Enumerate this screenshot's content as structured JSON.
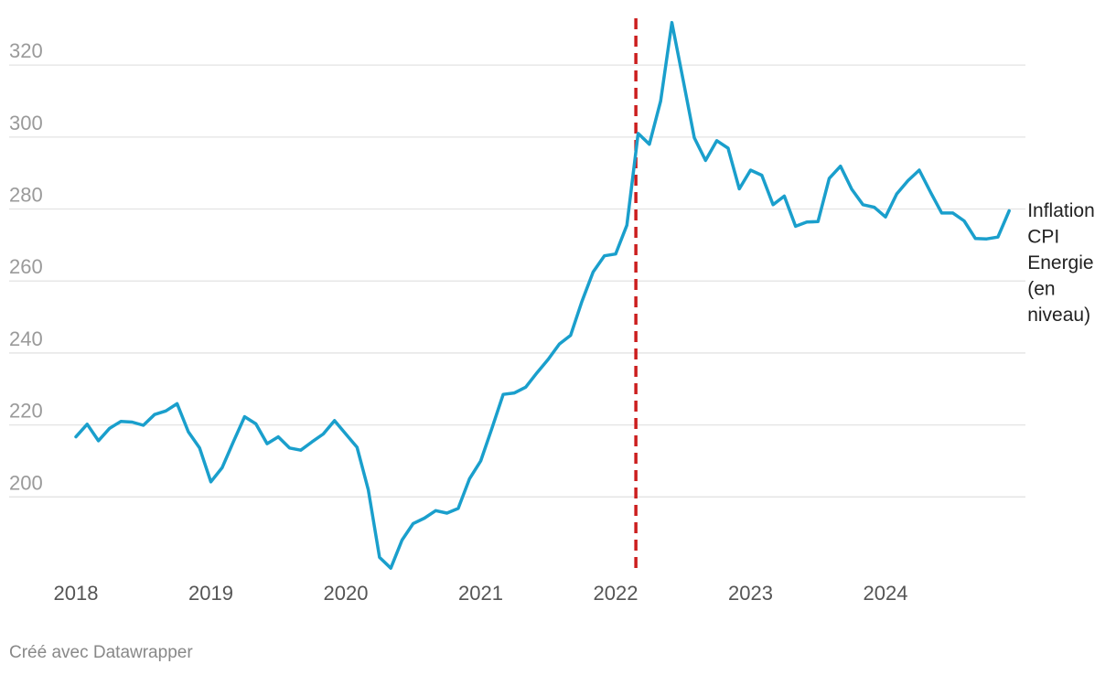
{
  "chart_data": {
    "type": "line",
    "title": "",
    "xlabel": "",
    "ylabel": "",
    "ylim": [
      180,
      333
    ],
    "xlim": [
      2018.0,
      2025.0
    ],
    "yticks": [
      "200",
      "220",
      "240",
      "260",
      "280",
      "300",
      "320"
    ],
    "xticks": [
      "2018",
      "2019",
      "2020",
      "2021",
      "2022",
      "2023",
      "2024"
    ],
    "grid": true,
    "series": [
      {
        "name": "Inflation CPI Energie (en niveau)",
        "label_lines": [
          "Inflation",
          "CPI",
          "Energie",
          "(en",
          "niveau)"
        ],
        "color": "#1a9fcc",
        "values": [
          216.7,
          220.2,
          215.6,
          219.1,
          221.0,
          220.8,
          219.9,
          222.9,
          223.9,
          225.9,
          218.1,
          213.6,
          204.2,
          208.1,
          215.3,
          222.3,
          220.3,
          214.8,
          216.7,
          213.6,
          213.0,
          215.3,
          217.5,
          221.2,
          217.5,
          213.8,
          202.0,
          183.2,
          180.2,
          188.0,
          192.6,
          194.1,
          196.2,
          195.5,
          196.8,
          205.0,
          210.0,
          219.1,
          228.5,
          228.9,
          230.5,
          234.5,
          238.2,
          242.5,
          244.9,
          254.3,
          262.5,
          267.0,
          267.5,
          275.5,
          301.0,
          298.0,
          310.0,
          331.8,
          316.0,
          299.8,
          293.5,
          299.0,
          296.9,
          285.6,
          290.8,
          289.4,
          281.2,
          283.6,
          275.2,
          276.4,
          276.5,
          288.5,
          291.9,
          285.5,
          281.2,
          280.5,
          277.8,
          284.2,
          287.9,
          290.8,
          284.7,
          278.9,
          278.9,
          276.7,
          271.8,
          271.7,
          272.2,
          279.5
        ]
      }
    ],
    "x_start": 2018.0,
    "x_step": 0.083333,
    "annotations": [
      {
        "type": "vline",
        "x": 2022.15,
        "color": "#cc1f1f",
        "style": "dashed"
      }
    ]
  },
  "credit": "Créé avec Datawrapper"
}
